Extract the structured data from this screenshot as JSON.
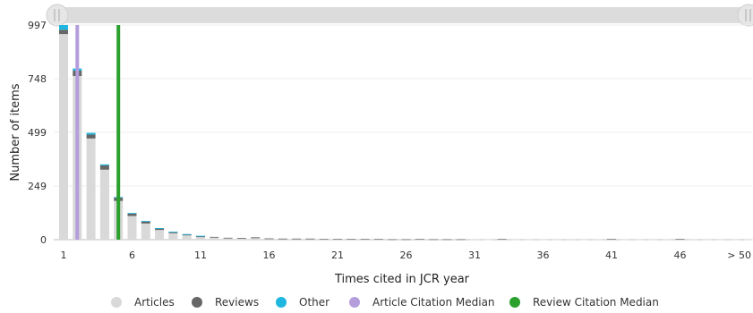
{
  "chart_data": {
    "type": "bar",
    "stacked": true,
    "xlabel": "Times cited in JCR year",
    "ylabel": "Number of items",
    "ylim": [
      0,
      997
    ],
    "y_ticks": [
      "0",
      "249",
      "499",
      "748",
      "997"
    ],
    "x_tick_labels": [
      {
        "pos": 1,
        "label": "1"
      },
      {
        "pos": 6,
        "label": "6"
      },
      {
        "pos": 11,
        "label": "11"
      },
      {
        "pos": 16,
        "label": "16"
      },
      {
        "pos": 21,
        "label": "21"
      },
      {
        "pos": 26,
        "label": "26"
      },
      {
        "pos": 31,
        "label": "31"
      },
      {
        "pos": 36,
        "label": "36"
      },
      {
        "pos": 41,
        "label": "41"
      },
      {
        "pos": 46,
        "label": "46"
      },
      {
        "pos": 51,
        "label": "> 50"
      }
    ],
    "categories": [
      1,
      2,
      3,
      4,
      5,
      6,
      7,
      8,
      9,
      10,
      11,
      12,
      13,
      14,
      15,
      16,
      17,
      18,
      19,
      20,
      21,
      22,
      23,
      24,
      25,
      26,
      27,
      28,
      29,
      30,
      31,
      32,
      33,
      34,
      35,
      36,
      37,
      38,
      39,
      40,
      41,
      42,
      43,
      44,
      45,
      46,
      47,
      48,
      49,
      50,
      51
    ],
    "series": [
      {
        "name": "Articles",
        "color": "#d9d9d9",
        "values": [
          955,
          760,
          470,
          325,
          180,
          110,
          75,
          45,
          30,
          20,
          12,
          10,
          6,
          5,
          7,
          4,
          3,
          3,
          3,
          2,
          2,
          2,
          2,
          2,
          1,
          1,
          2,
          1,
          1,
          1,
          1,
          1,
          2,
          1,
          1,
          1,
          1,
          1,
          1,
          1,
          2,
          1,
          1,
          1,
          1,
          2,
          1,
          1,
          1,
          1,
          1
        ]
      },
      {
        "name": "Reviews",
        "color": "#666666",
        "values": [
          20,
          25,
          18,
          20,
          15,
          12,
          10,
          8,
          6,
          5,
          5,
          3,
          3,
          3,
          4,
          2,
          2,
          2,
          2,
          1,
          1,
          1,
          1,
          1,
          1,
          1,
          1,
          1,
          1,
          1,
          0,
          0,
          1,
          0,
          0,
          0,
          0,
          0,
          0,
          0,
          1,
          0,
          0,
          0,
          0,
          1,
          0,
          0,
          0,
          0,
          0
        ]
      },
      {
        "name": "Other",
        "color": "#1fb7e0",
        "values": [
          22,
          10,
          8,
          5,
          3,
          2,
          2,
          1,
          1,
          1,
          1,
          0,
          0,
          0,
          0,
          0,
          0,
          0,
          0,
          0,
          0,
          0,
          0,
          0,
          0,
          0,
          0,
          0,
          0,
          0,
          0,
          0,
          0,
          0,
          0,
          0,
          0,
          0,
          0,
          0,
          0,
          0,
          0,
          0,
          0,
          0,
          0,
          0,
          0,
          0,
          0
        ]
      }
    ],
    "medians": [
      {
        "name": "Article Citation Median",
        "color": "#b39ddb",
        "x": 2
      },
      {
        "name": "Review Citation Median",
        "color": "#2ca02c",
        "x": 5
      }
    ],
    "grid": true,
    "legend_position": "bottom",
    "legend": [
      {
        "name": "Articles",
        "color": "#d9d9d9"
      },
      {
        "name": "Reviews",
        "color": "#666666"
      },
      {
        "name": "Other",
        "color": "#1fb7e0"
      },
      {
        "name": "Article Citation Median",
        "color": "#b39ddb"
      },
      {
        "name": "Review Citation Median",
        "color": "#2ca02c"
      }
    ]
  },
  "zoom_range": [
    0,
    1
  ]
}
